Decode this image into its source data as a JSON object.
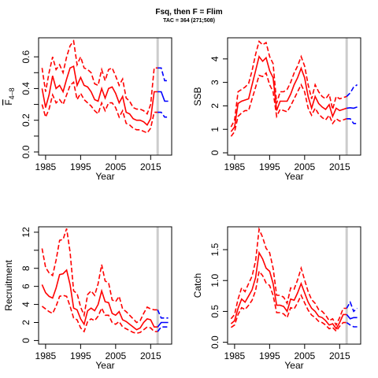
{
  "header": {
    "title": "Fsq, then F = Flim",
    "subtitle": "TAC = 364 (271;508)"
  },
  "colors": {
    "history": "#ff0000",
    "projection": "#0000ff",
    "marker": "#cccccc"
  },
  "chart_data": [
    {
      "id": "fbar",
      "type": "line",
      "xlabel": "Year",
      "ylabel_main": "F",
      "ylabel_sub": "4–8",
      "xlim": [
        1983,
        2021
      ],
      "ylim": [
        -0.02,
        0.72
      ],
      "xticks": [
        1985,
        1995,
        2005,
        2015
      ],
      "yticks": [
        0.0,
        0.2,
        0.4,
        0.6
      ],
      "ytick_labels": [
        "0.0",
        "0.2",
        "0.4",
        "0.6"
      ],
      "minor_yticks": [
        0.1,
        0.3,
        0.5
      ],
      "marker_year": 2017,
      "history": {
        "x": [
          1984,
          1985,
          1986,
          1987,
          1988,
          1989,
          1990,
          1991,
          1992,
          1993,
          1994,
          1995,
          1996,
          1997,
          1998,
          1999,
          2000,
          2001,
          2002,
          2003,
          2004,
          2005,
          2006,
          2007,
          2008,
          2009,
          2010,
          2011,
          2012,
          2013,
          2014,
          2015,
          2016,
          2017
        ],
        "median": [
          0.4,
          0.28,
          0.36,
          0.48,
          0.4,
          0.42,
          0.38,
          0.46,
          0.53,
          0.54,
          0.42,
          0.47,
          0.42,
          0.41,
          0.38,
          0.33,
          0.32,
          0.4,
          0.34,
          0.4,
          0.41,
          0.37,
          0.31,
          0.35,
          0.25,
          0.24,
          0.21,
          0.2,
          0.2,
          0.19,
          0.17,
          0.21,
          0.38,
          0.38
        ],
        "lower": [
          0.3,
          0.22,
          0.27,
          0.36,
          0.31,
          0.33,
          0.3,
          0.36,
          0.42,
          0.44,
          0.33,
          0.37,
          0.33,
          0.31,
          0.29,
          0.26,
          0.24,
          0.31,
          0.26,
          0.31,
          0.31,
          0.28,
          0.22,
          0.26,
          0.18,
          0.17,
          0.15,
          0.14,
          0.14,
          0.13,
          0.12,
          0.15,
          0.25,
          0.25
        ],
        "upper": [
          0.53,
          0.38,
          0.5,
          0.6,
          0.52,
          0.55,
          0.5,
          0.6,
          0.67,
          0.7,
          0.55,
          0.6,
          0.53,
          0.52,
          0.5,
          0.43,
          0.42,
          0.52,
          0.45,
          0.52,
          0.53,
          0.48,
          0.42,
          0.46,
          0.34,
          0.32,
          0.28,
          0.27,
          0.27,
          0.26,
          0.24,
          0.3,
          0.53,
          0.53
        ]
      },
      "projection": {
        "x": [
          2017,
          2018,
          2019,
          2020
        ],
        "median": [
          0.38,
          0.38,
          0.32,
          0.32
        ],
        "lower": [
          0.25,
          0.25,
          0.22,
          0.22
        ],
        "upper": [
          0.53,
          0.53,
          0.45,
          0.45
        ]
      }
    },
    {
      "id": "ssb",
      "type": "line",
      "xlabel": "Year",
      "ylabel_main": "SSB",
      "ylabel_sub": "",
      "xlim": [
        1983,
        2021
      ],
      "ylim": [
        -0.1,
        4.9
      ],
      "xticks": [
        1985,
        1995,
        2005,
        2015
      ],
      "yticks": [
        0,
        1,
        2,
        3,
        4
      ],
      "ytick_labels": [
        "0",
        "1",
        "2",
        "3",
        "4"
      ],
      "minor_yticks": [],
      "marker_year": 2017,
      "history": {
        "x": [
          1984,
          1985,
          1986,
          1987,
          1988,
          1989,
          1990,
          1991,
          1992,
          1993,
          1994,
          1995,
          1996,
          1997,
          1998,
          1999,
          2000,
          2001,
          2002,
          2003,
          2004,
          2005,
          2006,
          2007,
          2008,
          2009,
          2010,
          2011,
          2012,
          2013,
          2014,
          2015,
          2016,
          2017
        ],
        "median": [
          0.9,
          1.1,
          2.1,
          2.2,
          2.25,
          2.3,
          2.9,
          3.5,
          4.1,
          3.9,
          4.05,
          3.5,
          3.2,
          1.8,
          2.2,
          2.2,
          2.2,
          2.5,
          2.9,
          3.2,
          3.6,
          3.2,
          2.4,
          1.9,
          2.4,
          2.1,
          1.95,
          1.85,
          2.05,
          1.55,
          1.9,
          1.8,
          1.85,
          1.9
        ],
        "lower": [
          0.7,
          0.9,
          1.55,
          1.7,
          1.8,
          1.8,
          2.3,
          2.8,
          3.3,
          3.25,
          3.4,
          2.9,
          2.6,
          1.55,
          1.85,
          1.8,
          1.75,
          2.0,
          2.3,
          2.6,
          2.9,
          2.6,
          1.9,
          1.6,
          1.9,
          1.65,
          1.5,
          1.4,
          1.6,
          1.25,
          1.45,
          1.35,
          1.4,
          1.45
        ],
        "upper": [
          1.1,
          1.4,
          2.6,
          2.7,
          2.8,
          2.95,
          3.5,
          4.2,
          4.75,
          4.6,
          4.7,
          4.1,
          3.8,
          2.1,
          2.6,
          2.6,
          2.7,
          3.0,
          3.4,
          3.7,
          4.1,
          3.7,
          2.9,
          2.3,
          2.9,
          2.6,
          2.4,
          2.3,
          2.5,
          1.85,
          2.4,
          2.3,
          2.35,
          2.4
        ]
      },
      "projection": {
        "x": [
          2017,
          2018,
          2019,
          2020
        ],
        "median": [
          1.9,
          1.92,
          1.9,
          1.95
        ],
        "lower": [
          1.45,
          1.45,
          1.25,
          1.25
        ],
        "upper": [
          2.4,
          2.55,
          2.8,
          2.9
        ]
      }
    },
    {
      "id": "recruitment",
      "type": "line",
      "xlabel": "Year",
      "ylabel_main": "Recruitment",
      "ylabel_sub": "",
      "xlim": [
        1983,
        2021
      ],
      "ylim": [
        -0.4,
        12.6
      ],
      "xticks": [
        1985,
        1995,
        2005,
        2015
      ],
      "yticks": [
        0,
        2,
        4,
        6,
        8,
        12
      ],
      "ytick_labels": [
        "0",
        "2",
        "4",
        "6",
        "8",
        "12"
      ],
      "minor_yticks": [
        10
      ],
      "marker_year": 2017,
      "history": {
        "x": [
          1984,
          1985,
          1986,
          1987,
          1988,
          1989,
          1990,
          1991,
          1992,
          1993,
          1994,
          1995,
          1996,
          1997,
          1998,
          1999,
          2000,
          2001,
          2002,
          2003,
          2004,
          2005,
          2006,
          2007,
          2008,
          2009,
          2010,
          2011,
          2012,
          2013,
          2014,
          2015,
          2016,
          2017
        ],
        "median": [
          6.2,
          5.3,
          4.9,
          4.7,
          5.8,
          7.3,
          7.4,
          7.8,
          6.2,
          3.6,
          3.4,
          2.4,
          1.8,
          3.3,
          3.6,
          3.3,
          4.0,
          5.5,
          4.3,
          4.2,
          3.0,
          2.8,
          3.2,
          2.3,
          2.1,
          1.8,
          1.5,
          1.2,
          1.4,
          2.0,
          2.4,
          2.3,
          1.5,
          1.5
        ],
        "lower": [
          3.8,
          3.5,
          3.2,
          3.0,
          3.8,
          4.9,
          5.0,
          4.9,
          3.8,
          2.5,
          2.3,
          1.4,
          1.0,
          2.1,
          2.4,
          2.2,
          2.7,
          3.6,
          2.8,
          2.8,
          2.0,
          1.8,
          2.1,
          1.5,
          1.3,
          1.1,
          0.9,
          0.8,
          0.9,
          1.2,
          1.5,
          1.4,
          1.0,
          1.0
        ],
        "upper": [
          10.2,
          8.1,
          7.5,
          7.2,
          8.9,
          11.1,
          11.2,
          12.4,
          9.8,
          5.5,
          5.2,
          3.7,
          2.8,
          5.1,
          5.5,
          5.0,
          6.3,
          8.4,
          6.6,
          6.4,
          4.5,
          4.3,
          4.9,
          3.5,
          3.2,
          2.8,
          2.4,
          2.0,
          2.2,
          3.0,
          3.7,
          3.5,
          3.4,
          3.4
        ]
      },
      "projection": {
        "x": [
          2017,
          2018,
          2019,
          2020
        ],
        "median": [
          1.5,
          2.0,
          2.0,
          2.0
        ],
        "lower": [
          1.0,
          1.5,
          1.5,
          1.5
        ],
        "upper": [
          3.4,
          2.5,
          2.5,
          2.5
        ]
      }
    },
    {
      "id": "catch",
      "type": "line",
      "xlabel": "Year",
      "ylabel_main": "Catch",
      "ylabel_sub": "",
      "xlim": [
        1983,
        2021
      ],
      "ylim": [
        -0.03,
        1.87
      ],
      "xticks": [
        1985,
        1995,
        2005,
        2015
      ],
      "yticks": [
        0.0,
        0.5,
        1.0,
        1.5
      ],
      "ytick_labels": [
        "0.0",
        "0.5",
        "1.0",
        "1.5"
      ],
      "minor_yticks": [],
      "marker_year": 2017,
      "history": {
        "x": [
          1984,
          1985,
          1986,
          1987,
          1988,
          1989,
          1990,
          1991,
          1992,
          1993,
          1994,
          1995,
          1996,
          1997,
          1998,
          1999,
          2000,
          2001,
          2002,
          2003,
          2004,
          2005,
          2006,
          2007,
          2008,
          2009,
          2010,
          2011,
          2012,
          2013,
          2014,
          2015,
          2016,
          2017
        ],
        "median": [
          0.3,
          0.35,
          0.55,
          0.7,
          0.65,
          0.75,
          0.85,
          1.05,
          1.45,
          1.35,
          1.2,
          1.15,
          0.95,
          0.6,
          0.6,
          0.58,
          0.5,
          0.7,
          0.68,
          0.8,
          0.95,
          0.8,
          0.65,
          0.55,
          0.5,
          0.42,
          0.4,
          0.35,
          0.28,
          0.3,
          0.22,
          0.32,
          0.45,
          0.45
        ],
        "lower": [
          0.24,
          0.28,
          0.45,
          0.56,
          0.53,
          0.6,
          0.68,
          0.84,
          1.15,
          1.08,
          0.96,
          0.92,
          0.76,
          0.48,
          0.48,
          0.46,
          0.4,
          0.56,
          0.54,
          0.64,
          0.76,
          0.64,
          0.52,
          0.44,
          0.4,
          0.34,
          0.32,
          0.28,
          0.22,
          0.24,
          0.18,
          0.26,
          0.32,
          0.32
        ],
        "upper": [
          0.38,
          0.45,
          0.7,
          0.88,
          0.82,
          0.95,
          1.07,
          1.32,
          1.83,
          1.7,
          1.52,
          1.45,
          1.2,
          0.76,
          0.76,
          0.73,
          0.63,
          0.88,
          0.86,
          1.01,
          1.2,
          1.01,
          0.82,
          0.69,
          0.63,
          0.53,
          0.5,
          0.44,
          0.35,
          0.38,
          0.28,
          0.4,
          0.55,
          0.55
        ]
      },
      "projection": {
        "x": [
          2017,
          2018,
          2019,
          2020
        ],
        "median": [
          0.45,
          0.38,
          0.4,
          0.4
        ],
        "lower": [
          0.32,
          0.28,
          0.25,
          0.25
        ],
        "upper": [
          0.55,
          0.65,
          0.5,
          0.55
        ]
      }
    }
  ]
}
